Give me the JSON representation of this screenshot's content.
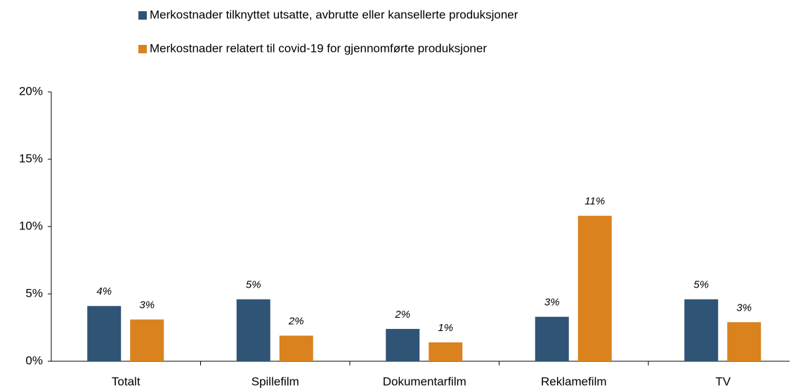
{
  "chart_data": {
    "type": "bar",
    "categories": [
      "Totalt",
      "Spillefilm",
      "Dokumentarfilm",
      "Reklamefilm",
      "TV"
    ],
    "series": [
      {
        "name": "Merkostnader tilknyttet utsatte, avbrutte eller kansellerte produksjoner",
        "color": "#2f5475",
        "values": [
          4.1,
          4.6,
          2.4,
          3.3,
          4.6
        ],
        "value_labels": [
          "4%",
          "5%",
          "2%",
          "3%",
          "5%"
        ]
      },
      {
        "name": "Merkostnader relatert til covid-19 for gjennomførte produksjoner",
        "color": "#d9821e",
        "values": [
          3.1,
          1.9,
          1.4,
          10.8,
          2.9
        ],
        "value_labels": [
          "3%",
          "2%",
          "1%",
          "11%",
          "3%"
        ]
      }
    ],
    "ylim": [
      0,
      20
    ],
    "yticks": [
      {
        "value": 0,
        "label": "0%"
      },
      {
        "value": 5,
        "label": "5%"
      },
      {
        "value": 10,
        "label": "10%"
      },
      {
        "value": 15,
        "label": "15%"
      },
      {
        "value": 20,
        "label": "20%"
      }
    ],
    "grid": false
  }
}
